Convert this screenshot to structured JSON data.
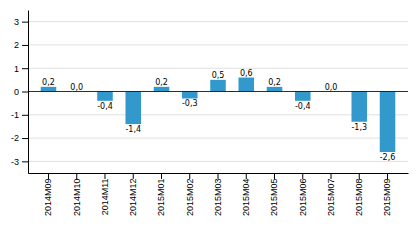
{
  "chart_data": {
    "type": "bar",
    "categories": [
      "2014M09",
      "2014M10",
      "2014M11",
      "2014M12",
      "2015M01",
      "2015M02",
      "2015M03",
      "2015M04",
      "2015M05",
      "2015M06",
      "2015M07",
      "2015M08",
      "2015M09"
    ],
    "values": [
      0.2,
      0.0,
      -0.4,
      -1.4,
      0.2,
      -0.3,
      0.5,
      0.6,
      0.2,
      -0.4,
      0.0,
      -1.3,
      -2.6
    ],
    "value_labels": [
      "0,2",
      "0,0",
      "-0,4",
      "-1,4",
      "0,2",
      "-0,3",
      "0,5",
      "0,6",
      "0,2",
      "-0,4",
      "0,0",
      "-1,3",
      "-2,6"
    ],
    "data_labels": true,
    "color": "#3399cc",
    "ylim": [
      -3.5,
      3.5
    ],
    "yticks": [
      -3,
      -2,
      -1,
      0,
      1,
      2,
      3
    ],
    "grid": true
  }
}
